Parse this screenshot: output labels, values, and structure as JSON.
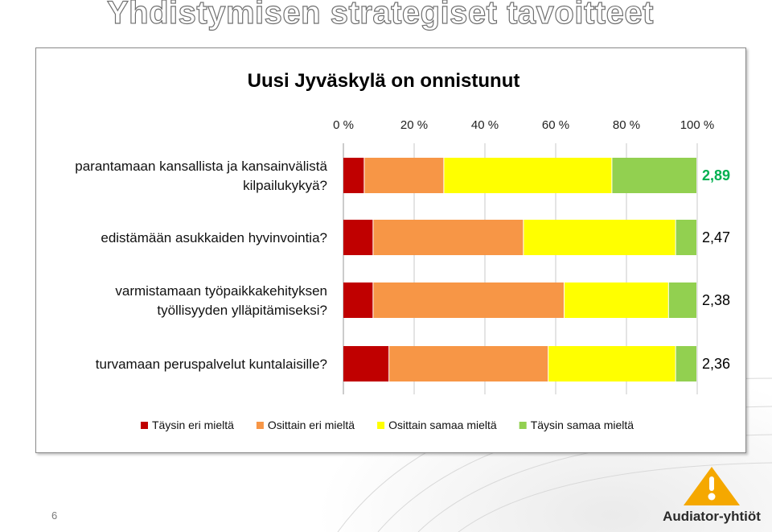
{
  "slide": {
    "title": "Yhdistymisen strategiset tavoitteet",
    "page_number": "6"
  },
  "logo": {
    "text": "Audiator-yhtiöt",
    "colors": {
      "triangle": "#f5a800",
      "mark": "#ffffff"
    }
  },
  "chart_data": {
    "type": "bar",
    "orientation": "horizontal",
    "stacked": true,
    "title": "Uusi Jyväskylä on onnistunut",
    "xlim": [
      0,
      100
    ],
    "x_ticks": [
      "0 %",
      "20 %",
      "40 %",
      "60 %",
      "80 %",
      "100 %"
    ],
    "categories": [
      [
        "parantamaan kansallista ja kansainvälistä",
        "kilpailukykyä?"
      ],
      [
        "edistämään asukkaiden hyvinvointia?"
      ],
      [
        "varmistamaan työpaikkakehityksen",
        "työllisyyden ylläpitämiseksi?"
      ],
      [
        "turvamaan peruspalvelut kuntalaisille?"
      ]
    ],
    "scores": [
      "2,89",
      "2,47",
      "2,38",
      "2,36"
    ],
    "highlight_score_index": 0,
    "series": [
      {
        "name": "Täysin eri mieltä",
        "color": "#c00000",
        "values": [
          6,
          8.5,
          8.5,
          13
        ]
      },
      {
        "name": "Osittain eri mieltä",
        "color": "#f79646",
        "values": [
          22.5,
          42.5,
          54,
          45
        ]
      },
      {
        "name": "Osittain samaa mieltä",
        "color": "#ffff00",
        "values": [
          47.5,
          43,
          29.5,
          36
        ]
      },
      {
        "name": "Täysin samaa mieltä",
        "color": "#92d050",
        "values": [
          24,
          6,
          8,
          6
        ]
      }
    ],
    "legend_position": "bottom",
    "grid": true,
    "colors": {
      "highlight_score": "#00b050",
      "score": "#000000",
      "grid": "#c8c8c8"
    }
  }
}
